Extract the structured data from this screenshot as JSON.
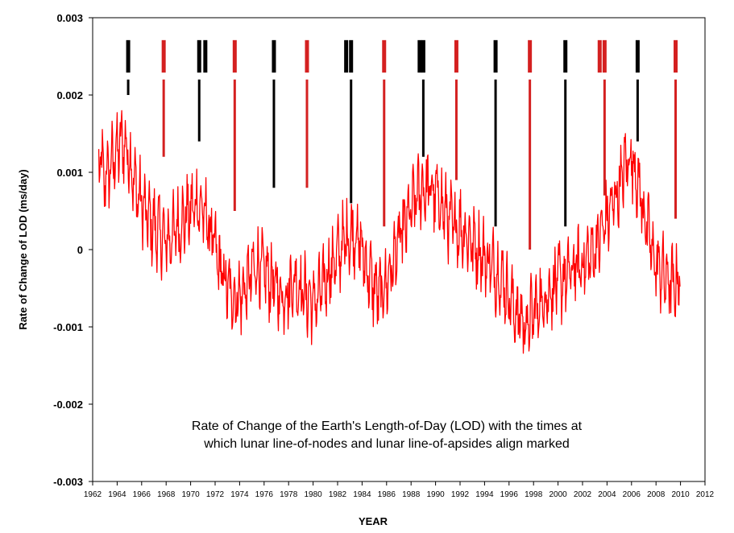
{
  "chart_data": {
    "type": "line",
    "title": "",
    "xlabel": "YEAR",
    "ylabel": "Rate of Change of LOD  (ms/day)",
    "xlim": [
      1962,
      2012
    ],
    "ylim": [
      -0.003,
      0.003
    ],
    "x_ticks": [
      1962,
      1964,
      1966,
      1968,
      1970,
      1972,
      1974,
      1976,
      1978,
      1980,
      1982,
      1984,
      1986,
      1988,
      1990,
      1992,
      1994,
      1996,
      1998,
      2000,
      2002,
      2004,
      2006,
      2008,
      2010,
      2012
    ],
    "y_ticks": [
      -0.003,
      -0.002,
      -0.001,
      0,
      0.001,
      0.002,
      0.003
    ],
    "y_tick_labels": [
      "-0.003",
      "-0.002",
      "-0.001",
      "0",
      "0.001",
      "0.002",
      "0.003"
    ],
    "grid": false,
    "legend": "none",
    "annotation": [
      "Rate of Change of the Earth's Length-of-Day (LOD) with the times at",
      "which lunar line-of-nodes and lunar line-of-apsides align marked"
    ],
    "series": [
      {
        "color": "#ff0000",
        "x": [
          1962.5,
          1963.0,
          1963.5,
          1964.0,
          1964.5,
          1965.0,
          1965.5,
          1966.0,
          1966.5,
          1967.0,
          1967.5,
          1968.0,
          1968.5,
          1969.0,
          1969.5,
          1970.0,
          1970.5,
          1971.0,
          1971.5,
          1972.0,
          1972.5,
          1973.0,
          1973.5,
          1974.0,
          1974.5,
          1975.0,
          1975.5,
          1976.0,
          1976.5,
          1977.0,
          1977.5,
          1978.0,
          1978.5,
          1979.0,
          1979.5,
          1980.0,
          1980.5,
          1981.0,
          1981.5,
          1982.0,
          1982.5,
          1983.0,
          1983.5,
          1984.0,
          1984.5,
          1985.0,
          1985.5,
          1986.0,
          1986.5,
          1987.0,
          1987.5,
          1988.0,
          1988.5,
          1989.0,
          1989.5,
          1990.0,
          1990.5,
          1991.0,
          1991.5,
          1992.0,
          1992.5,
          1993.0,
          1993.5,
          1994.0,
          1994.5,
          1995.0,
          1995.5,
          1996.0,
          1996.5,
          1997.0,
          1997.5,
          1998.0,
          1998.5,
          1999.0,
          1999.5,
          2000.0,
          2000.5,
          2001.0,
          2001.5,
          2002.0,
          2002.5,
          2003.0,
          2003.5,
          2004.0,
          2004.5,
          2005.0,
          2005.5,
          2006.0,
          2006.5,
          2007.0,
          2007.5,
          2008.0,
          2008.5,
          2009.0,
          2009.5,
          2010.0
        ],
        "y": [
          0.0012,
          0.0009,
          0.0011,
          0.0013,
          0.0014,
          0.0012,
          0.0008,
          0.0006,
          0.0004,
          0.0003,
          0.0002,
          0.0001,
          0.0002,
          0.0003,
          0.0004,
          0.0005,
          0.0006,
          0.0005,
          0.0003,
          0.0,
          -0.0003,
          -0.0005,
          -0.0006,
          -0.0006,
          -0.0005,
          -0.0003,
          -0.0002,
          -0.0003,
          -0.0004,
          -0.0005,
          -0.0006,
          -0.0005,
          -0.0004,
          -0.0005,
          -0.0006,
          -0.0007,
          -0.0006,
          -0.0004,
          -0.0002,
          -0.0001,
          0.0001,
          0.0002,
          0.0002,
          0.0,
          -0.0003,
          -0.0005,
          -0.0006,
          -0.0004,
          -0.0002,
          0.0001,
          0.0003,
          0.0005,
          0.0007,
          0.0008,
          0.0008,
          0.0007,
          0.0006,
          0.0004,
          0.0003,
          0.0003,
          0.0002,
          0.0001,
          0.0,
          -0.0001,
          -0.0002,
          -0.0003,
          -0.0004,
          -0.0006,
          -0.0008,
          -0.0009,
          -0.001,
          -0.0008,
          -0.0007,
          -0.0006,
          -0.0005,
          -0.0004,
          -0.0004,
          -0.0003,
          -0.0002,
          -0.0002,
          -0.0001,
          0.0,
          0.0002,
          0.0004,
          0.0006,
          0.0008,
          0.0011,
          0.0012,
          0.0009,
          0.0005,
          0.0001,
          -0.0002,
          -0.0003,
          -0.0004,
          -0.0005,
          -0.0003
        ]
      }
    ],
    "alignment_markers": [
      {
        "year": 1964.9,
        "color": "#000000",
        "low": 0.002
      },
      {
        "year": 1967.8,
        "color": "#d42020",
        "low": 0.0012
      },
      {
        "year": 1970.7,
        "color": "#000000",
        "low": 0.0014
      },
      {
        "year": 1971.2,
        "color": "#000000",
        "low": 0.0023
      },
      {
        "year": 1973.6,
        "color": "#d42020",
        "low": 0.0005
      },
      {
        "year": 1976.8,
        "color": "#000000",
        "low": 0.0008
      },
      {
        "year": 1979.5,
        "color": "#d42020",
        "low": 0.0008
      },
      {
        "year": 1982.7,
        "color": "#000000",
        "low": 0.0023
      },
      {
        "year": 1983.1,
        "color": "#000000",
        "low": 0.0006
      },
      {
        "year": 1985.8,
        "color": "#d42020",
        "low": 0.0003
      },
      {
        "year": 1988.7,
        "color": "#000000",
        "low": 0.0023
      },
      {
        "year": 1989.0,
        "color": "#000000",
        "low": 0.0012
      },
      {
        "year": 1991.7,
        "color": "#d42020",
        "low": 0.0009
      },
      {
        "year": 1994.9,
        "color": "#000000",
        "low": 0.0003
      },
      {
        "year": 1997.7,
        "color": "#d42020",
        "low": 0.0
      },
      {
        "year": 2000.6,
        "color": "#000000",
        "low": 0.0003
      },
      {
        "year": 2003.4,
        "color": "#d42020",
        "low": 0.0023
      },
      {
        "year": 2003.8,
        "color": "#d42020",
        "low": 0.0007
      },
      {
        "year": 2006.5,
        "color": "#000000",
        "low": 0.0014
      },
      {
        "year": 2009.6,
        "color": "#d42020",
        "low": 0.0004
      }
    ]
  }
}
